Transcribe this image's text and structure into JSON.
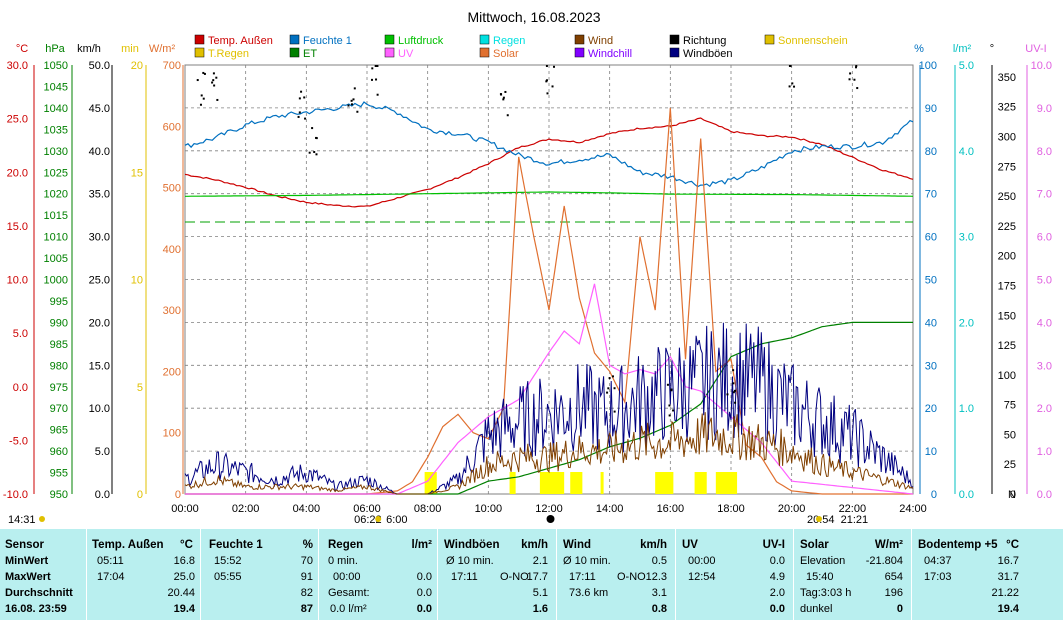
{
  "chart_data": {
    "type": "line",
    "title": "Mittwoch, 16.08.2023",
    "x_axis": {
      "ticks": [
        "00:00",
        "02:00",
        "04:00",
        "06:00",
        "08:00",
        "10:00",
        "12:00",
        "14:00",
        "16:00",
        "18:00",
        "20:00",
        "22:00",
        "24:00"
      ],
      "range_hours": [
        0,
        24
      ],
      "sunrise": "06:22",
      "sunset": "20:54",
      "moonrise": "14:31",
      "moonset": "21:21",
      "sun_marker_text": "06:22",
      "sun_marker_text_b": "6:00",
      "sunset_text": "20:54",
      "moon_text": "21:21",
      "moonrise_text": "14:31"
    },
    "left_axes": [
      {
        "unit": "°C",
        "color": "#cc0000",
        "ticks": [
          "30.0",
          "25.0",
          "20.0",
          "15.0",
          "10.0",
          "5.0",
          "0.0",
          "-5.0",
          "-10.0"
        ]
      },
      {
        "unit": "hPa",
        "color": "#008000",
        "ticks": [
          "1050",
          "1045",
          "1040",
          "1035",
          "1030",
          "1025",
          "1020",
          "1015",
          "1010",
          "1005",
          "1000",
          "995",
          "990",
          "985",
          "980",
          "975",
          "970",
          "965",
          "960",
          "955",
          "950"
        ]
      },
      {
        "unit": "km/h",
        "color": "#000000",
        "ticks": [
          "50.0",
          "45.0",
          "40.0",
          "35.0",
          "30.0",
          "25.0",
          "20.0",
          "15.0",
          "10.0",
          "5.0",
          "0.0"
        ]
      },
      {
        "unit": "min",
        "color": "#e0c000",
        "ticks": [
          "20",
          "15",
          "10",
          "5",
          "0"
        ]
      },
      {
        "unit": "W/m²",
        "color": "#e07030",
        "ticks": [
          "700",
          "600",
          "500",
          "400",
          "300",
          "200",
          "100",
          "0"
        ]
      }
    ],
    "right_axes": [
      {
        "unit": "%",
        "color": "#0070c0",
        "ticks": [
          "100",
          "90",
          "80",
          "70",
          "60",
          "50",
          "40",
          "30",
          "20",
          "10",
          "0"
        ]
      },
      {
        "unit": "l/m²",
        "color": "#00c0c0",
        "ticks": [
          "5.0",
          "4.0",
          "3.0",
          "2.0",
          "1.0",
          "0.0"
        ]
      },
      {
        "unit": "°",
        "color": "#000000",
        "ticks": [
          "350",
          "325",
          "300",
          "275",
          "250",
          "225",
          "200",
          "175",
          "150",
          "125",
          "100",
          "75",
          "50",
          "25",
          "0"
        ],
        "n_label": "N"
      },
      {
        "unit": "UV-I",
        "color": "#e060e0",
        "ticks": [
          "10.0",
          "9.0",
          "8.0",
          "7.0",
          "6.0",
          "5.0",
          "4.0",
          "3.0",
          "2.0",
          "1.0",
          "0.0"
        ]
      }
    ],
    "legend": [
      {
        "label": "Temp. Außen",
        "color": "#cc0000"
      },
      {
        "label": "T.Regen",
        "color": "#e0c000"
      },
      {
        "label": "Feuchte 1",
        "color": "#0070c0"
      },
      {
        "label": "ET",
        "color": "#008000"
      },
      {
        "label": "Luftdruck",
        "color": "#00c000"
      },
      {
        "label": "UV",
        "color": "#ff60ff"
      },
      {
        "label": "Regen",
        "color": "#00e0e0"
      },
      {
        "label": "Solar",
        "color": "#e07030"
      },
      {
        "label": "Wind",
        "color": "#804000"
      },
      {
        "label": "Windchill",
        "color": "#8000ff"
      },
      {
        "label": "Richtung",
        "color": "#000000"
      },
      {
        "label": "Windböen",
        "color": "#000080"
      },
      {
        "label": "Sonnenschein",
        "color": "#e0c000"
      }
    ],
    "series": [
      {
        "name": "Temp. Außen",
        "unit": "°C",
        "x": [
          0,
          1,
          2,
          3,
          4,
          5,
          6,
          7,
          8,
          9,
          10,
          11,
          12,
          13,
          14,
          15,
          16,
          17,
          18,
          19,
          20,
          21,
          22,
          23,
          24
        ],
        "y": [
          19.8,
          19.3,
          18.6,
          17.8,
          17.2,
          16.9,
          16.8,
          17.6,
          18.4,
          19.5,
          20.8,
          22.3,
          23.1,
          22.8,
          23.6,
          24.1,
          24.3,
          25.0,
          23.8,
          23.4,
          23.3,
          22.6,
          21.4,
          20.2,
          19.4
        ]
      },
      {
        "name": "Feuchte 1",
        "unit": "%",
        "x": [
          0,
          1,
          2,
          3,
          4,
          5,
          6,
          7,
          8,
          9,
          10,
          11,
          12,
          13,
          14,
          15,
          16,
          17,
          18,
          19,
          20,
          21,
          22,
          23,
          24
        ],
        "y": [
          81,
          83,
          86,
          88,
          89,
          90,
          91,
          89,
          85,
          84,
          82,
          79,
          77,
          78,
          79,
          75,
          74,
          72,
          73,
          76,
          80,
          81,
          81,
          82,
          87
        ]
      },
      {
        "name": "Luftdruck",
        "unit": "hPa",
        "x": [
          0,
          4,
          8,
          12,
          14,
          16,
          20,
          24
        ],
        "y": [
          1019.4,
          1019.6,
          1020.0,
          1020.4,
          1020.2,
          1019.9,
          1019.8,
          1019.4
        ]
      },
      {
        "name": "ET",
        "unit": "l/m²",
        "x": [
          0,
          8,
          9,
          10,
          11,
          12,
          13,
          14,
          15,
          16,
          17,
          18,
          19,
          20,
          21,
          22,
          23,
          24
        ],
        "y": [
          0,
          0,
          0,
          0.15,
          0.2,
          0.3,
          0.4,
          0.55,
          0.65,
          0.8,
          1.05,
          1.6,
          1.75,
          1.82,
          1.95,
          2.0,
          2.0,
          2.0
        ]
      },
      {
        "name": "Solar",
        "unit": "W/m²",
        "x": [
          0,
          6,
          7,
          7.5,
          8,
          8.5,
          9,
          9.5,
          10,
          10.5,
          11,
          11.5,
          12,
          12.5,
          13,
          13.5,
          14,
          14.5,
          15,
          15.5,
          16,
          16.5,
          17,
          17.5,
          18,
          18.5,
          19,
          19.5,
          20,
          21,
          24
        ],
        "y": [
          0,
          0,
          5,
          20,
          60,
          110,
          130,
          100,
          90,
          140,
          550,
          420,
          300,
          470,
          320,
          230,
          200,
          150,
          420,
          300,
          630,
          220,
          580,
          200,
          220,
          80,
          60,
          20,
          5,
          0,
          0
        ]
      },
      {
        "name": "UV",
        "unit": "UV-I",
        "x": [
          0,
          7,
          8,
          9,
          10,
          11,
          12,
          12.5,
          13,
          13.5,
          14,
          14.5,
          15,
          15.5,
          16,
          16.5,
          17,
          17.5,
          18,
          19,
          20,
          24
        ],
        "y": [
          0,
          0,
          0.3,
          1.2,
          1.8,
          2.2,
          3.3,
          3.8,
          3.5,
          4.9,
          3.0,
          2.8,
          2.9,
          2.8,
          3.2,
          2.5,
          2.4,
          2.1,
          1.8,
          1.2,
          0.3,
          0
        ]
      },
      {
        "name": "Windböen",
        "unit": "km/h",
        "x": [
          0,
          1,
          2,
          3,
          4,
          5,
          6,
          7,
          8,
          9,
          10,
          11,
          12,
          13,
          14,
          15,
          16,
          17,
          18,
          19,
          20,
          21,
          22,
          23,
          24
        ],
        "y": [
          2,
          4,
          3,
          2,
          3,
          1,
          2,
          0,
          0,
          2,
          8,
          10,
          11,
          12,
          11,
          13,
          14,
          15,
          16,
          15,
          12,
          10,
          8,
          5,
          1.6
        ]
      },
      {
        "name": "Wind",
        "unit": "km/h",
        "x": [
          0,
          1,
          2,
          3,
          4,
          5,
          6,
          7,
          8,
          9,
          10,
          11,
          12,
          13,
          14,
          15,
          16,
          17,
          18,
          19,
          20,
          21,
          22,
          23,
          24
        ],
        "y": [
          1,
          2,
          1,
          1,
          1,
          0.5,
          1,
          0,
          0,
          1,
          4,
          5,
          5,
          6,
          6,
          7,
          7,
          8,
          8,
          7,
          6,
          4,
          3,
          2,
          0.8
        ]
      },
      {
        "name": "Richtung",
        "unit": "°",
        "x": [
          0.5,
          1,
          3.8,
          4.2,
          5.5,
          6.2,
          10.5,
          12,
          14,
          16,
          18,
          20,
          22
        ],
        "y": [
          340,
          345,
          330,
          300,
          330,
          350,
          325,
          350,
          85,
          80,
          90,
          355,
          355
        ]
      }
    ],
    "sonnenschein_bars_hours": [
      [
        7.9,
        8.3
      ],
      [
        10.7,
        10.9
      ],
      [
        11.7,
        12.5
      ],
      [
        12.7,
        13.1
      ],
      [
        13.7,
        13.8
      ],
      [
        15.5,
        16.1
      ],
      [
        16.8,
        17.2
      ],
      [
        17.5,
        18.2
      ]
    ]
  },
  "summary": {
    "sensor": {
      "header": "Sensor",
      "rows": [
        "MinWert",
        "MaxWert",
        "Durchschnitt"
      ],
      "footer": "16.08. 23:59"
    },
    "temp": {
      "header": "Temp. Außen",
      "unit": "°C",
      "min_time": "05:11",
      "min": "16.8",
      "max_time": "17:04",
      "max": "25.0",
      "avg": "20.44",
      "current": "19.4"
    },
    "feuchte": {
      "header": "Feuchte 1",
      "unit": "%",
      "min_time": "15:52",
      "min": "70",
      "max_time": "05:55",
      "max": "91",
      "avg": "82",
      "current": "87"
    },
    "regen": {
      "header": "Regen",
      "unit": "l/m²",
      "r1_label": "0 min.",
      "r2_label": "00:00",
      "r2_val": "0.0",
      "r3_label": "Gesamt:",
      "r3_val": "0.0",
      "r4_label": "0.0 l/m²",
      "current": "0.0"
    },
    "windboeen": {
      "header": "Windböen",
      "unit": "km/h",
      "r1_label": "Ø 10 min.",
      "r1_val": "2.1",
      "r2_time": "17:11",
      "r2_dir": "O-NO",
      "r2_val": "17.7",
      "avg": "5.1",
      "current": "1.6"
    },
    "wind": {
      "header": "Wind",
      "unit": "km/h",
      "r1_label": "Ø 10 min.",
      "r1_val": "0.5",
      "r2_time": "17:11",
      "r2_dir": "O-NO",
      "r2_val": "12.3",
      "r3_label": "73.6 km",
      "avg": "3.1",
      "current": "0.8"
    },
    "uv": {
      "header": "UV",
      "unit": "UV-I",
      "min_time": "00:00",
      "min": "0.0",
      "max_time": "12:54",
      "max": "4.9",
      "avg": "2.0",
      "current": "0.0"
    },
    "solar": {
      "header": "Solar",
      "unit": "W/m²",
      "r1_label": "Elevation",
      "r1_val": "-21.804",
      "r2_time": "15:40",
      "r2_val": "654",
      "r3_label": "Tag:3:03 h",
      "r3_val": "196",
      "r4_label": "dunkel",
      "current": "0"
    },
    "boden": {
      "header": "Bodentemp +5",
      "unit": "°C",
      "min_time": "04:37",
      "min": "16.7",
      "max_time": "17:03",
      "max": "31.7",
      "avg": "21.22",
      "current": "19.4"
    }
  }
}
